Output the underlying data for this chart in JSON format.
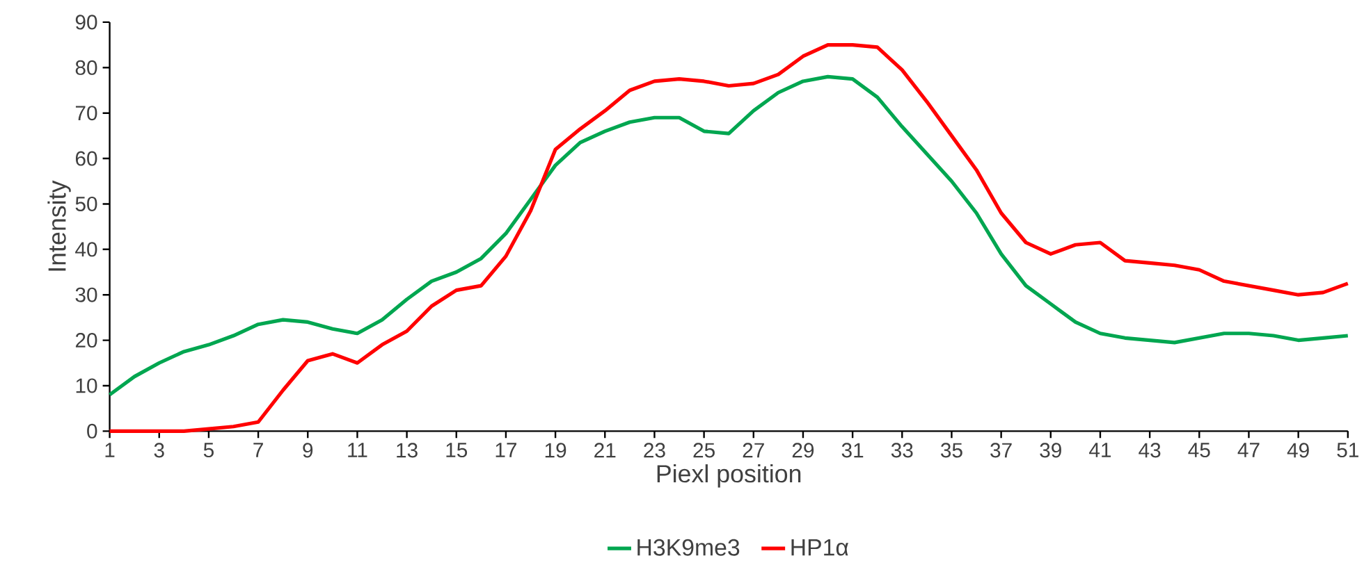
{
  "chart_data": {
    "type": "line",
    "xlabel": "Piexl position",
    "ylabel": "Intensity",
    "categories": [
      "1",
      null,
      "3",
      null,
      "5",
      null,
      "7",
      null,
      "9",
      null,
      "11",
      null,
      "13",
      null,
      "15",
      null,
      "17",
      null,
      "19",
      null,
      "21",
      null,
      "23",
      null,
      "25",
      null,
      "27",
      null,
      "29",
      null,
      "31",
      null,
      "33",
      null,
      "35",
      null,
      "37",
      null,
      "39",
      null,
      "41",
      null,
      "43",
      null,
      "45",
      null,
      "47",
      null,
      "49",
      null,
      "51"
    ],
    "series": [
      {
        "name": "H3K9me3",
        "color": "#00a650",
        "values": [
          8,
          12,
          15,
          17.5,
          19,
          21,
          23.5,
          24.5,
          24,
          22.5,
          21.5,
          24.5,
          29,
          33,
          35,
          38,
          43.5,
          51,
          58.5,
          63.5,
          66,
          68,
          69,
          69,
          66,
          65.5,
          70.5,
          74.5,
          77,
          78,
          77.5,
          73.5,
          67,
          61,
          55,
          48,
          39,
          32,
          28,
          24,
          21.5,
          20.5,
          20,
          19.5,
          20.5,
          21.5,
          21.5,
          21,
          20,
          20.5,
          21
        ]
      },
      {
        "name": "HP1α",
        "color": "#ff0000",
        "values": [
          0,
          0,
          0,
          0,
          0.5,
          1,
          2,
          9,
          15.5,
          17,
          15,
          19,
          22,
          27.5,
          31,
          32,
          38.5,
          48.5,
          62,
          66.5,
          70.5,
          75,
          77,
          77.5,
          77,
          76,
          76.5,
          78.5,
          82.5,
          85,
          85,
          84.5,
          79.5,
          72.5,
          65,
          57.5,
          48,
          41.5,
          39,
          41,
          41.5,
          37.5,
          37,
          36.5,
          35.5,
          33,
          32,
          31,
          30,
          30.5,
          32.5
        ]
      }
    ],
    "ylim": [
      0,
      90
    ],
    "yticks": [
      0,
      10,
      20,
      30,
      40,
      50,
      60,
      70,
      80,
      90
    ],
    "legend": "bottom",
    "marker": "none",
    "line_style": "solid"
  }
}
